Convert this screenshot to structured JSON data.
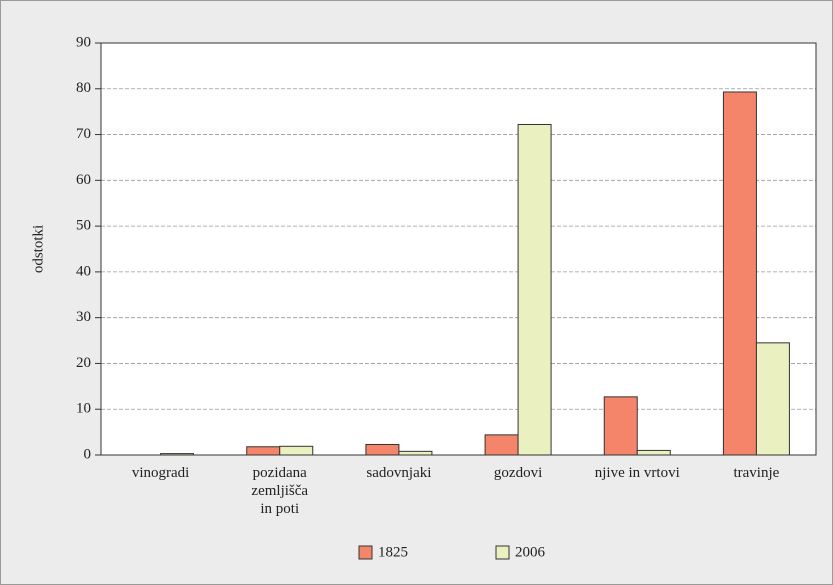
{
  "chart_data": {
    "type": "bar",
    "y_label": "odstotki",
    "categories": [
      "vinogradi",
      "pozidana\nzemljišča\nin poti",
      "sadovnjaki",
      "gozdovi",
      "njive in vrtovi",
      "travinje"
    ],
    "series": [
      {
        "name": "1825",
        "color": "#f4846a",
        "values": [
          0,
          1.8,
          2.3,
          4.4,
          12.7,
          79.3
        ]
      },
      {
        "name": "2006",
        "color": "#eaf0c0",
        "values": [
          0.3,
          1.9,
          0.8,
          72.2,
          1.0,
          24.5
        ]
      }
    ],
    "ylim": [
      0,
      90
    ],
    "yticks": [
      0,
      10,
      20,
      30,
      40,
      50,
      60,
      70,
      80,
      90
    ],
    "grid": true,
    "legend": "bottom"
  }
}
